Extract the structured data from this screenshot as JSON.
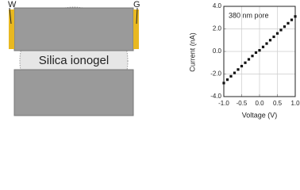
{
  "diagram": {
    "left_electrode": "W",
    "right_electrode": "G",
    "material": "Silica ionogel"
  },
  "chart_data": {
    "type": "scatter",
    "annotation": "380 nm pore",
    "x_label": "Voltage (V)",
    "y_label": "Current (nA)",
    "color": "#111111",
    "x": [
      -1.0,
      -0.9,
      -0.8,
      -0.7,
      -0.6,
      -0.5,
      -0.4,
      -0.3,
      -0.2,
      -0.1,
      0.0,
      0.1,
      0.2,
      0.3,
      0.4,
      0.5,
      0.6,
      0.7,
      0.8,
      0.9,
      1.0
    ],
    "values": [
      -2.8,
      -2.5,
      -2.2,
      -1.9,
      -1.6,
      -1.3,
      -1.0,
      -0.7,
      -0.4,
      -0.1,
      0.1,
      0.4,
      0.7,
      1.0,
      1.3,
      1.6,
      1.9,
      2.2,
      2.5,
      2.8,
      3.1
    ],
    "xlim": [
      -1,
      1
    ],
    "xticks": [
      {
        "value": -1,
        "label": "-1.0"
      },
      {
        "value": -0.5,
        "label": "-0.5"
      },
      {
        "value": 0,
        "label": "0.0"
      },
      {
        "value": 0.5,
        "label": "0.5"
      },
      {
        "value": 1,
        "label": "1.0"
      }
    ],
    "ylim": [
      -4,
      4
    ],
    "yticks": [
      {
        "value": -4,
        "label": "-4.0"
      },
      {
        "value": -2,
        "label": "-2.0"
      },
      {
        "value": 0,
        "label": "0.0"
      },
      {
        "value": 2,
        "label": "2.0"
      },
      {
        "value": 4,
        "label": "4.0"
      }
    ],
    "grid": true
  }
}
